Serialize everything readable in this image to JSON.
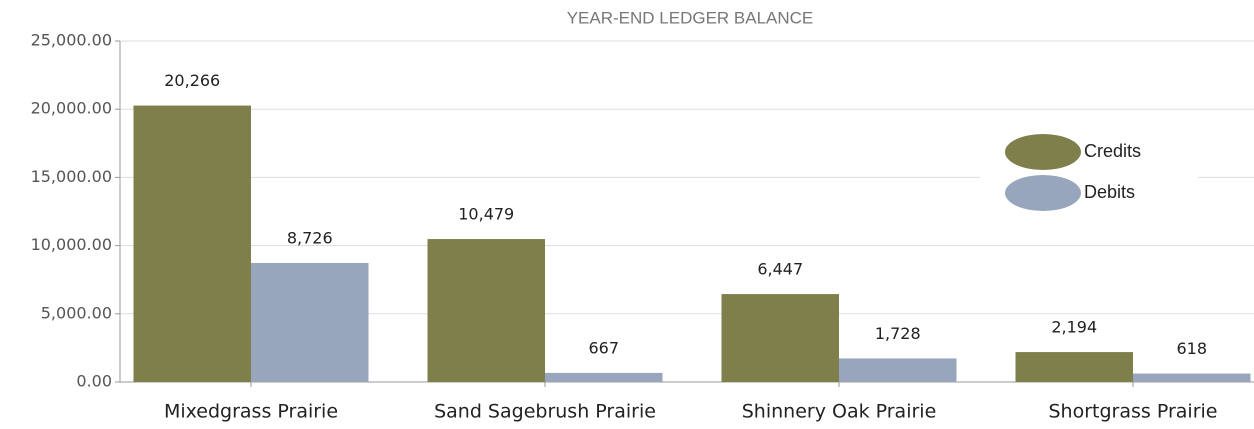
{
  "chart_data": {
    "type": "bar",
    "title": "YEAR-END LEDGER BALANCE",
    "categories": [
      "Mixedgrass Prairie",
      "Sand Sagebrush Prairie",
      "Shinnery Oak Prairie",
      "Shortgrass Prairie"
    ],
    "series": [
      {
        "name": "Credits",
        "color": "#7f7f4b",
        "values": [
          20266,
          10479,
          6447,
          2194
        ],
        "value_labels": [
          "20,266",
          "10,479",
          "6,447",
          "2,194"
        ]
      },
      {
        "name": "Debits",
        "color": "#97a6bd",
        "values": [
          8726,
          667,
          1728,
          618
        ],
        "value_labels": [
          "8,726",
          "667",
          "1,728",
          "618"
        ]
      }
    ],
    "ylim": [
      0,
      25000
    ],
    "yticks": [
      {
        "value": 0,
        "label": "0.00"
      },
      {
        "value": 5000,
        "label": "5,000.00"
      },
      {
        "value": 10000,
        "label": "10,000.00"
      },
      {
        "value": 15000,
        "label": "15,000.00"
      },
      {
        "value": 20000,
        "label": "20,000.00"
      },
      {
        "value": 25000,
        "label": "25,000.00"
      }
    ],
    "grid": true,
    "legend": "right"
  }
}
